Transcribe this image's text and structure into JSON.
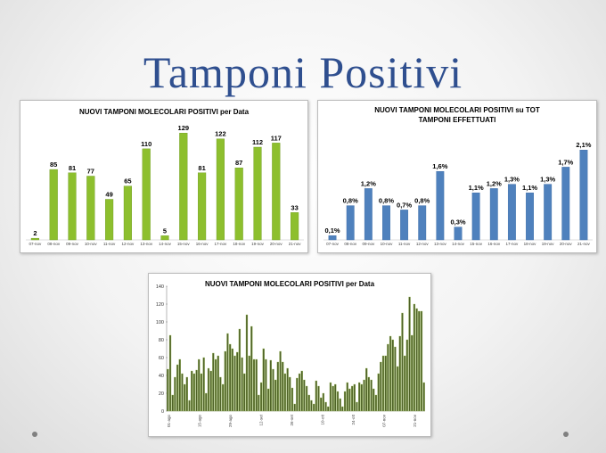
{
  "slide": {
    "title": "Tamponi Positivi"
  },
  "chart_data": [
    {
      "type": "bar",
      "title": "NUOVI TAMPONI MOLECOLARI POSITIVI per Data",
      "categories": [
        "07-nov",
        "08-nov",
        "09-nov",
        "10-nov",
        "11-nov",
        "12-nov",
        "13-nov",
        "14-nov",
        "15-nov",
        "16-nov",
        "17-nov",
        "18-nov",
        "19-nov",
        "20-nov",
        "21-nov"
      ],
      "values": [
        2,
        85,
        81,
        77,
        49,
        65,
        110,
        5,
        129,
        81,
        122,
        87,
        112,
        117,
        33
      ],
      "value_labels": [
        "2",
        "85",
        "81",
        "77",
        "49",
        "65",
        "110",
        "5",
        "129",
        "81",
        "122",
        "87",
        "112",
        "117",
        "33"
      ],
      "ylim": [
        0,
        140
      ],
      "color": "#8dbf2e"
    },
    {
      "type": "bar",
      "title": "NUOVI TAMPONI MOLECOLARI POSITIVI su TOT TAMPONI EFFETTUATI",
      "title_lines": [
        "NUOVI TAMPONI MOLECOLARI POSITIVI su TOT",
        "TAMPONI EFFETTUATI"
      ],
      "categories": [
        "07-nov",
        "08-nov",
        "09-nov",
        "10-nov",
        "11-nov",
        "12-nov",
        "13-nov",
        "14-nov",
        "15-nov",
        "16-nov",
        "17-nov",
        "18-nov",
        "19-nov",
        "20-nov",
        "21-nov"
      ],
      "values": [
        0.1,
        0.8,
        1.2,
        0.8,
        0.7,
        0.8,
        1.6,
        0.3,
        1.1,
        1.2,
        1.3,
        1.1,
        1.3,
        1.7,
        2.1
      ],
      "value_labels": [
        "0,1%",
        "0,8%",
        "1,2%",
        "0,8%",
        "0,7%",
        "0,8%",
        "1,6%",
        "0,3%",
        "1,1%",
        "1,2%",
        "1,3%",
        "1,1%",
        "1,3%",
        "1,7%",
        "2,1%"
      ],
      "ylim": [
        0,
        2.5
      ],
      "color": "#4f81bd"
    },
    {
      "type": "bar",
      "title": "NUOVI TAMPONI MOLECOLARI POSITIVI per Data",
      "yticks": [
        0,
        20,
        40,
        60,
        80,
        100,
        120,
        140
      ],
      "ylim": [
        0,
        140
      ],
      "xtick_labels": [
        "01-ago",
        "15-ago",
        "29-ago",
        "12-set",
        "26-set",
        "10-ott",
        "24-ott",
        "07-nov",
        "21-nov"
      ],
      "values": [
        47,
        85,
        18,
        38,
        52,
        58,
        42,
        30,
        38,
        12,
        45,
        42,
        46,
        58,
        42,
        60,
        20,
        48,
        45,
        65,
        58,
        62,
        38,
        30,
        67,
        87,
        75,
        70,
        62,
        66,
        92,
        60,
        42,
        108,
        62,
        95,
        58,
        58,
        18,
        32,
        70,
        58,
        25,
        57,
        47,
        35,
        55,
        67,
        55,
        42,
        48,
        38,
        26,
        8,
        37,
        42,
        45,
        35,
        28,
        18,
        12,
        8,
        34,
        28,
        15,
        20,
        10,
        5,
        32,
        28,
        30,
        22,
        14,
        5,
        22,
        32,
        25,
        28,
        30,
        10,
        32,
        30,
        35,
        48,
        38,
        35,
        25,
        18,
        42,
        55,
        62,
        62,
        75,
        84,
        80,
        72,
        50,
        84,
        110,
        62,
        80,
        128,
        85,
        120,
        115,
        112,
        112,
        32
      ],
      "color": "#4f6228"
    }
  ]
}
